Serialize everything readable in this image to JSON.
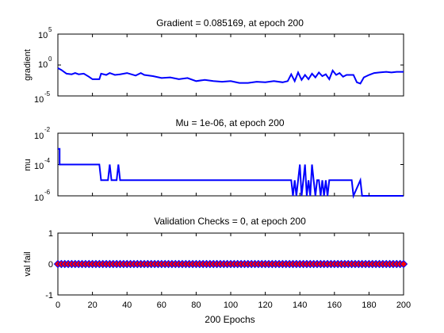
{
  "colors": {
    "line": "#0000ff",
    "marker_edge": "#0000ff",
    "marker_fill": "#ff0000",
    "axes": "#000000",
    "background": "#ffffff"
  },
  "chart_data": [
    {
      "type": "line",
      "title": "Gradient = 0.085169, at epoch 200",
      "ylabel": "gradient",
      "xlabel": "",
      "yscale": "log",
      "xlim": [
        0,
        200
      ],
      "ylim_exp": [
        -5,
        5
      ],
      "ytick_exps": [
        "-5",
        "0",
        "5"
      ],
      "ytick_base": "10",
      "series": [
        {
          "name": "gradient",
          "x": [
            0,
            2,
            5,
            8,
            10,
            12,
            15,
            18,
            20,
            24,
            25,
            28,
            30,
            33,
            36,
            40,
            45,
            48,
            50,
            55,
            60,
            65,
            70,
            75,
            80,
            85,
            90,
            95,
            100,
            105,
            110,
            115,
            120,
            125,
            130,
            133,
            135,
            137,
            139,
            141,
            143,
            145,
            147,
            149,
            151,
            153,
            155,
            157,
            159,
            161,
            163,
            165,
            167,
            169,
            171,
            173,
            175,
            177,
            180,
            183,
            186,
            190,
            193,
            196,
            200
          ],
          "y_exp": [
            -0.5,
            -0.8,
            -1.4,
            -1.5,
            -1.3,
            -1.5,
            -1.4,
            -1.9,
            -2.3,
            -2.3,
            -1.4,
            -1.6,
            -1.3,
            -1.6,
            -1.5,
            -1.3,
            -1.7,
            -1.3,
            -1.6,
            -1.8,
            -2.1,
            -2.0,
            -2.3,
            -2.1,
            -2.6,
            -2.4,
            -2.6,
            -2.7,
            -2.6,
            -2.9,
            -2.9,
            -2.7,
            -2.8,
            -2.6,
            -2.8,
            -2.6,
            -1.5,
            -2.6,
            -1.2,
            -2.4,
            -1.6,
            -2.3,
            -1.4,
            -2.0,
            -1.2,
            -1.8,
            -1.5,
            -2.3,
            -0.9,
            -1.6,
            -1.3,
            -1.9,
            -1.6,
            -1.6,
            -1.6,
            -2.8,
            -3.0,
            -2.0,
            -1.6,
            -1.3,
            -1.2,
            -1.1,
            -1.2,
            -1.1,
            -1.1
          ]
        }
      ]
    },
    {
      "type": "line",
      "title": "Mu = 1e-06, at epoch 200",
      "ylabel": "mu",
      "xlabel": "",
      "yscale": "log",
      "xlim": [
        0,
        200
      ],
      "ylim_exp": [
        -6,
        -2
      ],
      "ytick_exps": [
        "-6",
        "-4",
        "-2"
      ],
      "ytick_base": "10",
      "series": [
        {
          "name": "mu",
          "x": [
            0,
            1,
            1,
            24,
            25,
            29,
            30,
            31,
            32,
            34,
            35,
            36,
            37,
            135,
            136,
            137,
            138,
            139,
            140,
            141,
            142,
            143,
            144,
            145,
            146,
            147,
            148,
            149,
            150,
            151,
            152,
            153,
            154,
            155,
            156,
            157,
            158,
            165,
            170,
            171,
            175,
            176,
            177,
            200
          ],
          "y_exp": [
            -3,
            -3,
            -4,
            -4,
            -5,
            -5,
            -4,
            -5,
            -5,
            -5,
            -4,
            -5,
            -5,
            -5,
            -6,
            -5,
            -6,
            -5,
            -4,
            -6,
            -5,
            -4,
            -6,
            -5,
            -6,
            -4,
            -5,
            -6,
            -5,
            -5,
            -6,
            -5,
            -6,
            -5,
            -6,
            -5,
            -5,
            -5,
            -5,
            -6,
            -5,
            -6,
            -6,
            -6
          ]
        }
      ]
    },
    {
      "type": "scatter",
      "title": "Validation Checks = 0, at epoch 200",
      "ylabel": "val fail",
      "xlabel": "200 Epochs",
      "xlim": [
        0,
        200
      ],
      "ylim": [
        -1,
        1
      ],
      "yticks": [
        "-1",
        "0",
        "1"
      ],
      "xticks": [
        "0",
        "20",
        "40",
        "60",
        "80",
        "100",
        "120",
        "140",
        "160",
        "180",
        "200"
      ],
      "xtick_values": [
        0,
        20,
        40,
        60,
        80,
        100,
        120,
        140,
        160,
        180,
        200
      ],
      "series": [
        {
          "name": "val fail",
          "x_start": 0,
          "x_end": 200,
          "x_step": 2,
          "y": 0
        }
      ]
    }
  ]
}
